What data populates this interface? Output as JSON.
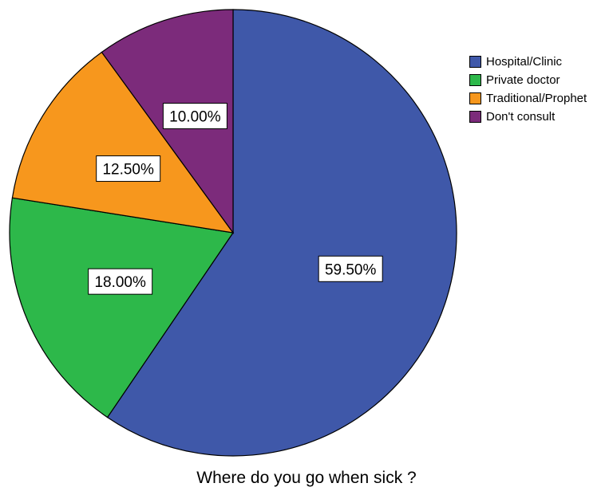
{
  "chart_data": {
    "type": "pie",
    "title": "Where do you go when sick ?",
    "legend_position": "top-right",
    "slices": [
      {
        "label": "Hospital/Clinic",
        "value": 59.5,
        "display": "59.50%",
        "color": "#3f58a9"
      },
      {
        "label": "Private doctor",
        "value": 18.0,
        "display": "18.00%",
        "color": "#2db84a"
      },
      {
        "label": "Traditional/Prophet",
        "value": 12.5,
        "display": "12.50%",
        "color": "#f7971d"
      },
      {
        "label": "Don't consult",
        "value": 10.0,
        "display": "10.00%",
        "color": "#7c2b7b"
      }
    ]
  }
}
